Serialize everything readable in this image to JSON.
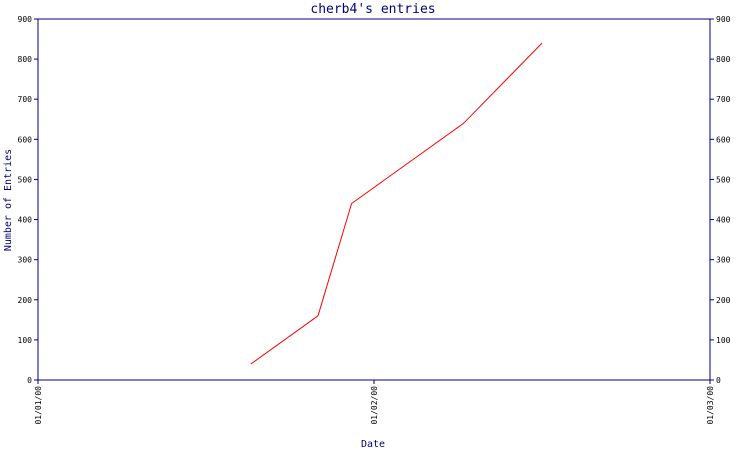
{
  "chart_data": {
    "type": "line",
    "title": "cherb4's entries",
    "xlabel": "Date",
    "ylabel": "Number of Entries",
    "x_ticks": [
      "01/01/00",
      "01/02/00",
      "01/03/00"
    ],
    "y_ticks": [
      "0",
      "100",
      "200",
      "300",
      "400",
      "500",
      "600",
      "700",
      "800",
      "900"
    ],
    "ylim": [
      0,
      900
    ],
    "xlim": [
      "2000-01-01",
      "2000-03-01"
    ],
    "grid": false,
    "series": [
      {
        "x": [
          "2000-01-20",
          "2000-01-26",
          "2000-01-29",
          "2000-02-08",
          "2000-02-15"
        ],
        "values": [
          40,
          160,
          440,
          640,
          840
        ],
        "color": "#ff0000"
      }
    ]
  },
  "colors": {
    "axis": "#000080",
    "tick_text": "#000000",
    "title": "#000080",
    "line": "#ff0000"
  }
}
